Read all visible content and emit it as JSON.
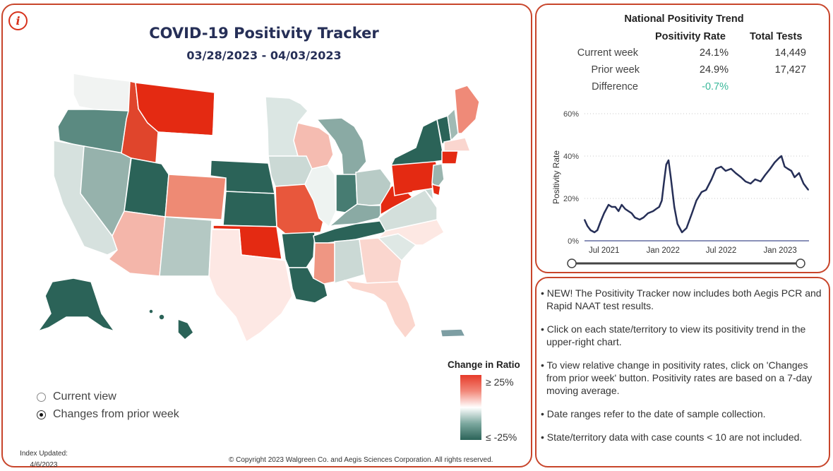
{
  "header": {
    "title": "COVID-19 Positivity Tracker",
    "date_range": "03/28/2023 - 04/03/2023",
    "info_icon": "i"
  },
  "legend": {
    "title": "Change in Ratio",
    "high_label": "≥ 25%",
    "low_label": "≤ -25%",
    "colors": {
      "high": "#e63b2a",
      "mid": "#ffffff",
      "low": "#2b6358"
    }
  },
  "view_options": {
    "current_view": "Current view",
    "changes": "Changes from prior week",
    "selected": "changes"
  },
  "footer": {
    "index_updated_label": "Index Updated:",
    "index_updated_date": "4/6/2023",
    "copyright": "© Copyright 2023 Walgreen Co. and Aegis Sciences Corporation. All rights reserved."
  },
  "trend": {
    "title": "National Positivity Trend",
    "col_rate": "Positivity Rate",
    "col_tests": "Total Tests",
    "rows": [
      {
        "label": "Current week",
        "rate": "24.1%",
        "tests": "14,449"
      },
      {
        "label": "Prior week",
        "rate": "24.9%",
        "tests": "17,427"
      },
      {
        "label": "Difference",
        "rate": "-0.7%",
        "tests": ""
      }
    ],
    "difference_color": "#3ab89a"
  },
  "chart_data": {
    "type": "line",
    "ylabel": "Positivity Rate",
    "xlabel": "",
    "ylim": [
      0,
      60
    ],
    "y_ticks": [
      "0%",
      "20%",
      "40%",
      "60%"
    ],
    "x_ticks": [
      "Jul 2021",
      "Jan 2022",
      "Jul 2022",
      "Jan 2023"
    ],
    "grid": true,
    "line_color": "#262f57",
    "series": [
      {
        "x": [
          "2021-05-01",
          "2021-05-10",
          "2021-05-20",
          "2021-06-01",
          "2021-06-10",
          "2021-06-20",
          "2021-07-01",
          "2021-07-15",
          "2021-07-25",
          "2021-08-05",
          "2021-08-15",
          "2021-08-25",
          "2021-09-05",
          "2021-09-15",
          "2021-09-25",
          "2021-10-05",
          "2021-10-20",
          "2021-11-01",
          "2021-11-15",
          "2021-12-01",
          "2021-12-10",
          "2021-12-20",
          "2021-12-28",
          "2022-01-04",
          "2022-01-11",
          "2022-01-18",
          "2022-01-25",
          "2022-02-05",
          "2022-02-15",
          "2022-03-01",
          "2022-03-15",
          "2022-04-01",
          "2022-04-15",
          "2022-05-01",
          "2022-05-15",
          "2022-06-01",
          "2022-06-15",
          "2022-07-01",
          "2022-07-15",
          "2022-08-01",
          "2022-08-15",
          "2022-09-01",
          "2022-09-15",
          "2022-10-01",
          "2022-10-15",
          "2022-11-01",
          "2022-11-15",
          "2022-12-01",
          "2022-12-15",
          "2022-12-28",
          "2023-01-05",
          "2023-01-15",
          "2023-01-25",
          "2023-02-05",
          "2023-02-15",
          "2023-03-01",
          "2023-03-15",
          "2023-03-30"
        ],
        "y": [
          10,
          7,
          5,
          4,
          5,
          9,
          13,
          17,
          16,
          16,
          14,
          17,
          15,
          14,
          13,
          11,
          10,
          11,
          13,
          14,
          15,
          16,
          19,
          28,
          36,
          38,
          30,
          16,
          8,
          4,
          6,
          13,
          19,
          23,
          24,
          29,
          34,
          35,
          33,
          34,
          32,
          30,
          28,
          27,
          29,
          28,
          31,
          34,
          37,
          39,
          40,
          35,
          34,
          33,
          30,
          32,
          27,
          24
        ]
      }
    ]
  },
  "notes": [
    "NEW! The Positivity Tracker now includes both Aegis PCR and Rapid NAAT test results.",
    "Click on each state/territory to view its positivity trend in the upper-right chart.",
    "To view relative change in positivity rates, click on 'Changes from prior week' button. Positivity rates are based on a 7-day moving average.",
    "Date ranges refer to the date of sample collection.",
    "State/territory data with case counts < 10 are not included."
  ],
  "map_colors": {
    "WA": "#f1f3f2",
    "OR": "#5b8a81",
    "CA": "#d6e1de",
    "ID": "#e0452c",
    "NV": "#96b2ac",
    "MT": "#e42a12",
    "WY": "#ffffff",
    "UT": "#2b6358",
    "AZ": "#f4b6aa",
    "CO": "#ee8a74",
    "NM": "#b4c8c3",
    "ND": "#ffffff",
    "SD": "#ffffff",
    "NE": "#2b6358",
    "KS": "#2b6358",
    "OK": "#e42a12",
    "TX": "#fde8e4",
    "MN": "#dbe6e3",
    "IA": "#cbd9d5",
    "MO": "#e8573c",
    "AR": "#2b6358",
    "LA": "#2b6358",
    "WI": "#f5bcb1",
    "IL": "#eef3f1",
    "MI": "#8aaaa4",
    "IN": "#477c72",
    "OH": "#b8cbc6",
    "KY": "#8aaaa4",
    "TN": "#2b6358",
    "MS": "#ef9683",
    "AL": "#cbd9d5",
    "GA": "#fad6ce",
    "FL": "#fbd6cd",
    "SC": "#dfe8e5",
    "NC": "#fde8e3",
    "VA": "#d3dfdb",
    "WV": "#e42a12",
    "PA": "#e42a12",
    "NY": "#2b6358",
    "VT": "#2b6358",
    "NH": "#a0bab4",
    "ME": "#ef8a78",
    "MA": "#fad6cf",
    "CT": "#e42a12",
    "NJ": "#9ab5af",
    "DE": "#e42a12",
    "MD": "#c4d5d0",
    "AK": "#2b6358",
    "HI": "#2b6358",
    "PR": "#7d9ea3"
  }
}
